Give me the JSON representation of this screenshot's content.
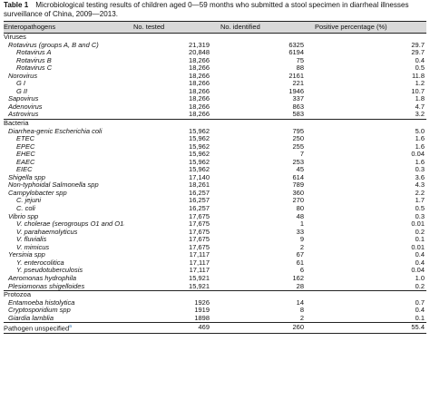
{
  "caption": {
    "label": "Table 1",
    "text": "Microbiological testing results of children aged 0—59 months who submitted a stool specimen in diarrheal illnesses surveillance of China, 2009—2013."
  },
  "headers": {
    "col1": "Enteropathogens",
    "col2": "No. tested",
    "col3": "No. identified",
    "col4": "Positive percentage (%)"
  },
  "rows": [
    {
      "level": "sec",
      "name": "Viruses",
      "tested": "",
      "identified": "",
      "pct": ""
    },
    {
      "level": "l1",
      "name": "Rotavirus (groups A, B and C)",
      "tested": "21,319",
      "identified": "6325",
      "pct": "29.7"
    },
    {
      "level": "l2",
      "name": "Rotavirus A",
      "tested": "20,848",
      "identified": "6194",
      "pct": "29.7"
    },
    {
      "level": "l2",
      "name": "Rotavirus B",
      "tested": "18,266",
      "identified": "75",
      "pct": "0.4"
    },
    {
      "level": "l2",
      "name": "Rotavirus C",
      "tested": "18,266",
      "identified": "88",
      "pct": "0.5"
    },
    {
      "level": "l1",
      "name": "Norovirus",
      "tested": "18,266",
      "identified": "2161",
      "pct": "11.8"
    },
    {
      "level": "l2",
      "name": "G I",
      "tested": "18,266",
      "identified": "221",
      "pct": "1.2"
    },
    {
      "level": "l2",
      "name": "G II",
      "tested": "18,266",
      "identified": "1946",
      "pct": "10.7"
    },
    {
      "level": "l1",
      "name": "Sapovirus",
      "tested": "18,266",
      "identified": "337",
      "pct": "1.8"
    },
    {
      "level": "l1",
      "name": "Adenovirus",
      "tested": "18,266",
      "identified": "863",
      "pct": "4.7"
    },
    {
      "level": "l1",
      "name": "Astrovirus",
      "tested": "18,266",
      "identified": "583",
      "pct": "3.2"
    },
    {
      "level": "sec",
      "name": "Bacteria",
      "tested": "",
      "identified": "",
      "pct": ""
    },
    {
      "level": "l1",
      "name": "Diarrhea-genic Escherichia coli",
      "tested": "15,962",
      "identified": "795",
      "pct": "5.0"
    },
    {
      "level": "l2",
      "name": "ETEC",
      "tested": "15,962",
      "identified": "250",
      "pct": "1.6"
    },
    {
      "level": "l2",
      "name": "EPEC",
      "tested": "15,962",
      "identified": "255",
      "pct": "1.6"
    },
    {
      "level": "l2",
      "name": "EHEC",
      "tested": "15,962",
      "identified": "7",
      "pct": "0.04"
    },
    {
      "level": "l2",
      "name": "EAEC",
      "tested": "15,962",
      "identified": "253",
      "pct": "1.6"
    },
    {
      "level": "l2",
      "name": "EIEC",
      "tested": "15,962",
      "identified": "45",
      "pct": "0.3"
    },
    {
      "level": "l1",
      "name": "Shigella spp",
      "tested": "17,140",
      "identified": "614",
      "pct": "3.6"
    },
    {
      "level": "l1",
      "name": "Non-typhoidal Salmonella spp",
      "tested": "18,261",
      "identified": "789",
      "pct": "4.3"
    },
    {
      "level": "l1",
      "name": "Campylobacter spp",
      "tested": "16,257",
      "identified": "360",
      "pct": "2.2"
    },
    {
      "level": "l2",
      "name": "C. jejuni",
      "tested": "16,257",
      "identified": "270",
      "pct": "1.7"
    },
    {
      "level": "l2",
      "name": "C. coli",
      "tested": "16,257",
      "identified": "80",
      "pct": "0.5"
    },
    {
      "level": "l1",
      "name": "Vibrio spp",
      "tested": "17,675",
      "identified": "48",
      "pct": "0.3"
    },
    {
      "level": "l2",
      "name": "V. cholerae (serogroups O1 and O139)",
      "tested": "17,675",
      "identified": "1",
      "pct": "0.01"
    },
    {
      "level": "l2",
      "name": "V. parahaemolyticus",
      "tested": "17,675",
      "identified": "33",
      "pct": "0.2"
    },
    {
      "level": "l2",
      "name": "V. fluvialis",
      "tested": "17,675",
      "identified": "9",
      "pct": "0.1"
    },
    {
      "level": "l2",
      "name": "V. mimicus",
      "tested": "17,675",
      "identified": "2",
      "pct": "0.01"
    },
    {
      "level": "l1",
      "name": "Yersinia spp",
      "tested": "17,117",
      "identified": "67",
      "pct": "0.4"
    },
    {
      "level": "l2",
      "name": "Y. enterocolitica",
      "tested": "17,117",
      "identified": "61",
      "pct": "0.4"
    },
    {
      "level": "l2",
      "name": "Y. pseudotuberculosis",
      "tested": "17,117",
      "identified": "6",
      "pct": "0.04"
    },
    {
      "level": "l1",
      "name": "Aeromonas hydrophila",
      "tested": "15,921",
      "identified": "162",
      "pct": "1.0"
    },
    {
      "level": "l1",
      "name": "Plesiomonas shigelloides",
      "tested": "15,921",
      "identified": "28",
      "pct": "0.2"
    },
    {
      "level": "sec",
      "name": "Protozoa",
      "tested": "",
      "identified": "",
      "pct": ""
    },
    {
      "level": "l1",
      "name": "Entamoeba histolytica",
      "tested": "1926",
      "identified": "14",
      "pct": "0.7"
    },
    {
      "level": "l1",
      "name": "Cryptosporidium spp",
      "tested": "1919",
      "identified": "8",
      "pct": "0.4"
    },
    {
      "level": "l1",
      "name": "Giardia lamblia",
      "tested": "1898",
      "identified": "2",
      "pct": "0.1"
    },
    {
      "level": "sec",
      "name": "Pathogen unspecified",
      "tested": "469",
      "identified": "260",
      "pct": "55.4",
      "sup": "a"
    }
  ]
}
